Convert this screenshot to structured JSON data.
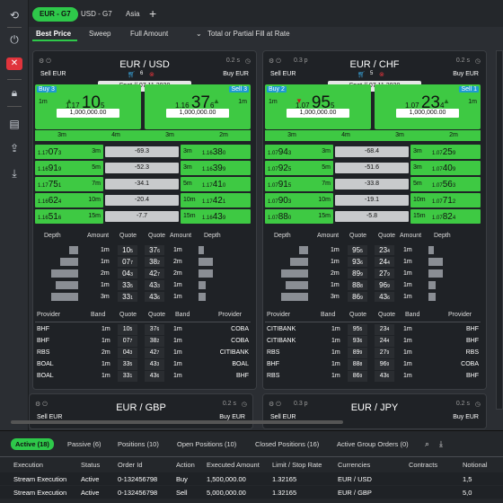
{
  "tabs": [
    {
      "label": "EUR - G7"
    },
    {
      "label": "USD - G7"
    },
    {
      "label": "Asia"
    }
  ],
  "subtabs": [
    "Best Price",
    "Sweep",
    "Full Amount",
    "Total or Partial Fill at Rate"
  ],
  "panels": [
    {
      "title": "EUR / USD",
      "latency": "0.2 s",
      "sell": "Sell EUR",
      "buy": "Buy EUR",
      "count": "6",
      "spot": "Spot  //  07.11.2020",
      "buy_label": "Buy 3",
      "sell_label": "Sell 3",
      "bid_big": "1.17",
      "bid_pips": "10",
      "bid_pip_small": "5",
      "ask_big": "1.16",
      "ask_pips": "37",
      "ask_pip_small": "6",
      "qty": "1,000,000.00",
      "tenor": "1m",
      "tenors": [
        "3m",
        "4m",
        "3m",
        "2m"
      ],
      "ladder": [
        {
          "l": "1.17",
          "lp": "07",
          "ls": "3",
          "lt": "3m",
          "m": "-69.3",
          "r": "1.16",
          "rp": "38",
          "rs": "0",
          "rt": "3m"
        },
        {
          "l": "1.16",
          "lp": "91",
          "ls": "9",
          "lt": "5m",
          "m": "-52.3",
          "r": "1.16",
          "rp": "39",
          "rs": "9",
          "rt": "3m"
        },
        {
          "l": "1.17",
          "lp": "75",
          "ls": "1",
          "lt": "7m",
          "m": "-34.1",
          "r": "1.17",
          "rp": "41",
          "rs": "0",
          "rt": "5m"
        },
        {
          "l": "1.16",
          "lp": "62",
          "ls": "4",
          "lt": "10m",
          "m": "-20.4",
          "r": "1.17",
          "rp": "42",
          "rs": "1",
          "rt": "10m"
        },
        {
          "l": "1.16",
          "lp": "51",
          "ls": "6",
          "lt": "15m",
          "m": "-7.7",
          "r": "1.16",
          "rp": "43",
          "rs": "9",
          "rt": "15m"
        }
      ],
      "depth_headers": [
        "Depth",
        "Amount",
        "Quote",
        "Quote",
        "Amount",
        "Depth"
      ],
      "depth": [
        {
          "a1": "1m",
          "q1": "10",
          "q1s": "5",
          "q2": "37",
          "q2s": "6",
          "a2": "1m"
        },
        {
          "a1": "1m",
          "q1": "07",
          "q1s": "7",
          "q2": "38",
          "q2s": "2",
          "a2": "2m"
        },
        {
          "a1": "2m",
          "q1": "04",
          "q1s": "3",
          "q2": "42",
          "q2s": "7",
          "a2": "2m"
        },
        {
          "a1": "1m",
          "q1": "33",
          "q1s": "5",
          "q2": "43",
          "q2s": "3",
          "a2": "1m"
        },
        {
          "a1": "3m",
          "q1": "33",
          "q1s": "1",
          "q2": "43",
          "q2s": "6",
          "a2": "1m"
        }
      ],
      "prov_headers": [
        "Provider",
        "Band",
        "Quote",
        "Quote",
        "Band",
        "Provider"
      ],
      "providers": [
        {
          "p1": "BHF",
          "b1": "1m",
          "q1": "10",
          "q1s": "5",
          "q2": "37",
          "q2s": "6",
          "b2": "1m",
          "p2": "COBA"
        },
        {
          "p1": "BHF",
          "b1": "1m",
          "q1": "07",
          "q1s": "7",
          "q2": "38",
          "q2s": "2",
          "b2": "1m",
          "p2": "COBA"
        },
        {
          "p1": "RBS",
          "b1": "2m",
          "q1": "04",
          "q1s": "3",
          "q2": "42",
          "q2s": "7",
          "b2": "1m",
          "p2": "CITIBANK"
        },
        {
          "p1": "BOAL",
          "b1": "1m",
          "q1": "33",
          "q1s": "5",
          "q2": "43",
          "q2s": "3",
          "b2": "1m",
          "p2": "BOAL"
        },
        {
          "p1": "BOAL",
          "b1": "1m",
          "q1": "33",
          "q1s": "1",
          "q2": "43",
          "q2s": "6",
          "b2": "1m",
          "p2": "BHF"
        }
      ]
    },
    {
      "title": "EUR / CHF",
      "latency": "0.2 s",
      "sell": "Sell EUR",
      "buy": "Buy EUR",
      "count": "5",
      "spot": "Spot  //  07.11.2020",
      "extra": "0.3 p",
      "buy_label": "Buy 2",
      "sell_label": "Sell 1",
      "bid_big": "1.07",
      "bid_pips": "95",
      "bid_pip_small": "5",
      "ask_big": "1.07",
      "ask_pips": "23",
      "ask_pip_small": "4",
      "qty": "1,000,000.00",
      "tenor": "1m",
      "tenors": [
        "3m",
        "4m",
        "3m",
        "2m"
      ],
      "ladder": [
        {
          "l": "1.07",
          "lp": "94",
          "ls": "3",
          "lt": "3m",
          "m": "-68.4",
          "r": "1.07",
          "rp": "25",
          "rs": "9",
          "rt": "3m"
        },
        {
          "l": "1.07",
          "lp": "92",
          "ls": "5",
          "lt": "5m",
          "m": "-51.6",
          "r": "1.07",
          "rp": "40",
          "rs": "9",
          "rt": "3m"
        },
        {
          "l": "1.07",
          "lp": "91",
          "ls": "5",
          "lt": "7m",
          "m": "-33.8",
          "r": "1.07",
          "rp": "56",
          "rs": "3",
          "rt": "5m"
        },
        {
          "l": "1.07",
          "lp": "90",
          "ls": "3",
          "lt": "10m",
          "m": "-19.1",
          "r": "1.07",
          "rp": "71",
          "rs": "2",
          "rt": "10m"
        },
        {
          "l": "1.07",
          "lp": "88",
          "ls": "0",
          "lt": "15m",
          "m": "-5.8",
          "r": "1.07",
          "rp": "82",
          "rs": "4",
          "rt": "15m"
        }
      ],
      "depth_headers": [
        "Depth",
        "Amount",
        "Quote",
        "Quote",
        "Amount",
        "Depth"
      ],
      "depth": [
        {
          "a1": "1m",
          "q1": "95",
          "q1s": "5",
          "q2": "23",
          "q2s": "4",
          "a2": "1m"
        },
        {
          "a1": "1m",
          "q1": "93",
          "q1s": "6",
          "q2": "24",
          "q2s": "4",
          "a2": "1m"
        },
        {
          "a1": "2m",
          "q1": "89",
          "q1s": "9",
          "q2": "27",
          "q2s": "9",
          "a2": "1m"
        },
        {
          "a1": "1m",
          "q1": "88",
          "q1s": "8",
          "q2": "96",
          "q2s": "9",
          "a2": "1m"
        },
        {
          "a1": "3m",
          "q1": "86",
          "q1s": "9",
          "q2": "43",
          "q2s": "6",
          "a2": "1m"
        }
      ],
      "prov_headers": [
        "Provider",
        "Band",
        "Quote",
        "Quote",
        "Band",
        "Provider"
      ],
      "providers": [
        {
          "p1": "CITIBANK",
          "b1": "1m",
          "q1": "95",
          "q1s": "5",
          "q2": "23",
          "q2s": "4",
          "b2": "1m",
          "p2": "BHF"
        },
        {
          "p1": "CITIBANK",
          "b1": "1m",
          "q1": "93",
          "q1s": "6",
          "q2": "24",
          "q2s": "4",
          "b2": "1m",
          "p2": "BHF"
        },
        {
          "p1": "RBS",
          "b1": "1m",
          "q1": "89",
          "q1s": "9",
          "q2": "27",
          "q2s": "9",
          "b2": "1m",
          "p2": "RBS"
        },
        {
          "p1": "BHF",
          "b1": "1m",
          "q1": "88",
          "q1s": "8",
          "q2": "96",
          "q2s": "9",
          "b2": "1m",
          "p2": "COBA"
        },
        {
          "p1": "RBS",
          "b1": "1m",
          "q1": "86",
          "q1s": "9",
          "q2": "43",
          "q2s": "6",
          "b2": "1m",
          "p2": "BHF"
        }
      ]
    }
  ],
  "lower_panels": [
    {
      "title": "EUR / GBP",
      "latency": "0.2 s",
      "sell": "Sell EUR",
      "buy": "Buy EUR"
    },
    {
      "title": "EUR / JPY",
      "latency": "0.2 s",
      "sell": "Sell EUR",
      "buy": "Buy EUR",
      "extra": "0.3 p"
    }
  ],
  "bottom_tabs": [
    "Active (18)",
    "Passive (6)",
    "Positions (10)",
    "Open Positions (10)",
    "Closed Positions (16)",
    "Active Group Orders (0)"
  ],
  "table_headers": [
    "Execution",
    "Status",
    "Order Id",
    "Action",
    "Executed Amount",
    "Limit / Stop Rate",
    "Currencies",
    "Contracts",
    "Notional"
  ],
  "rows": [
    [
      "Stream Execution",
      "Active",
      "0-132456798",
      "Buy",
      "1,500,000.00",
      "1.32165",
      "EUR / USD",
      "",
      "1,5"
    ],
    [
      "Stream Execution",
      "Active",
      "0-132456798",
      "Sell",
      "5,000,000.00",
      "1.32165",
      "EUR / GBP",
      "",
      "5,0"
    ]
  ]
}
